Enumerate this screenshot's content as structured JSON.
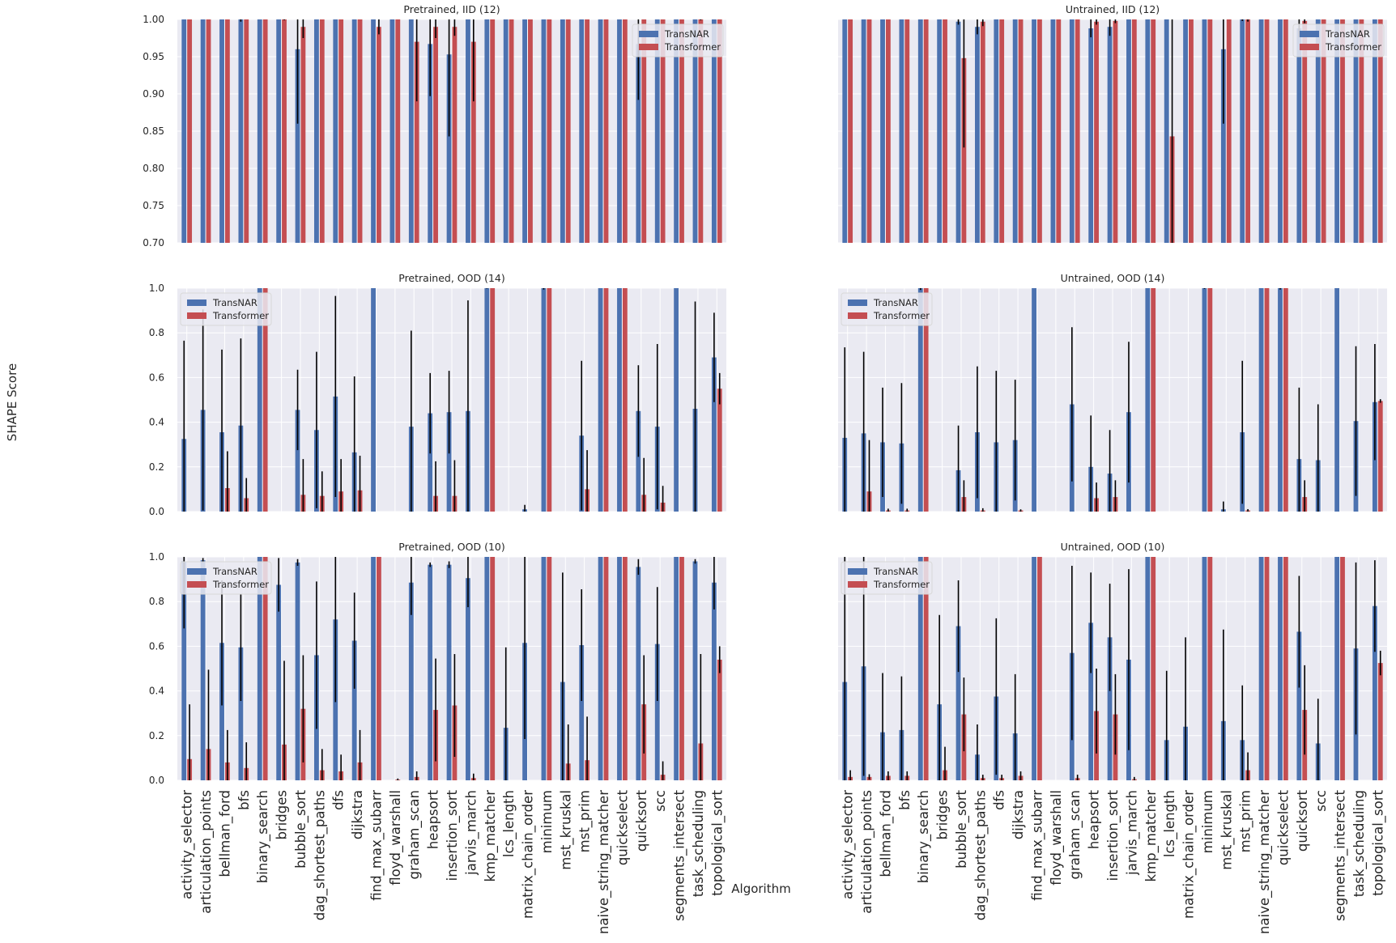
{
  "figure": {
    "ylabel": "SHAPE Score",
    "xlabel": "Algorithm",
    "legend_labels": [
      "TransNAR",
      "Transformer"
    ],
    "colors": {
      "transnar": "#4c72b0",
      "transformer": "#c44e52",
      "panel_bg": "#eaeaf2",
      "grid": "#ffffff",
      "errorbar": "#000000"
    }
  },
  "categories": [
    "activity_selector",
    "articulation_points",
    "bellman_ford",
    "bfs",
    "binary_search",
    "bridges",
    "bubble_sort",
    "dag_shortest_paths",
    "dfs",
    "dijkstra",
    "find_max_subarr",
    "floyd_warshall",
    "graham_scan",
    "heapsort",
    "insertion_sort",
    "jarvis_march",
    "kmp_matcher",
    "lcs_length",
    "matrix_chain_order",
    "minimum",
    "mst_kruskal",
    "mst_prim",
    "naive_string_matcher",
    "quickselect",
    "quicksort",
    "scc",
    "segments_intersect",
    "task_scheduling",
    "topological_sort"
  ],
  "chart_data": [
    {
      "type": "bar",
      "title": "Pretrained, IID (12)",
      "ylim": [
        0.7,
        1.0
      ],
      "yticks": [
        "0.70",
        "0.75",
        "0.80",
        "0.85",
        "0.90",
        "0.95",
        "1.00"
      ],
      "legend": "top-right",
      "series": [
        {
          "name": "TransNAR",
          "values": [
            1,
            1,
            1,
            1,
            1,
            1,
            0.96,
            1,
            1,
            1,
            1,
            1,
            1,
            0.967,
            0.953,
            1,
            1,
            1,
            1,
            1,
            1,
            1,
            1,
            1,
            0.967,
            1,
            1,
            1,
            1
          ],
          "err": [
            0,
            0,
            0,
            0.003,
            0,
            0,
            0.1,
            0,
            0,
            0,
            0,
            0,
            0,
            0.07,
            0.11,
            0,
            0,
            0,
            0,
            0,
            0,
            0,
            0,
            0,
            0.075,
            0,
            0,
            0,
            0
          ]
        },
        {
          "name": "Transformer",
          "values": [
            1,
            1,
            1,
            1,
            1,
            1,
            0.99,
            1,
            1,
            1,
            0.99,
            1,
            0.97,
            0.99,
            0.99,
            0.97,
            1,
            1,
            1,
            1,
            1,
            1,
            1,
            1,
            1,
            1,
            1,
            1,
            1
          ],
          "err": [
            0,
            0,
            0,
            0,
            0,
            0.001,
            0.015,
            0,
            0,
            0,
            0.01,
            0,
            0.08,
            0.015,
            0.012,
            0.08,
            0,
            0,
            0,
            0,
            0,
            0,
            0,
            0,
            0,
            0,
            0,
            0.001,
            0
          ]
        }
      ]
    },
    {
      "type": "bar",
      "title": "Untrained, IID (12)",
      "ylim": [
        0.7,
        1.0
      ],
      "yticks": [
        "0.70",
        "0.75",
        "0.80",
        "0.85",
        "0.90",
        "0.95",
        "1.00"
      ],
      "legend": "top-right",
      "series": [
        {
          "name": "TransNAR",
          "values": [
            1,
            1,
            1,
            1,
            1,
            1,
            0.997,
            0.99,
            1,
            1,
            1,
            1,
            1,
            0.988,
            0.99,
            1,
            1,
            1,
            1,
            1,
            0.96,
            1,
            1,
            1,
            0.988,
            1,
            1,
            1,
            1
          ],
          "err": [
            0,
            0,
            0,
            0,
            0,
            0,
            0.004,
            0.01,
            0,
            0,
            0,
            0,
            0,
            0.012,
            0.012,
            0,
            0,
            0,
            0,
            0,
            0.1,
            0.002,
            0,
            0,
            0.012,
            0,
            0,
            0,
            0
          ]
        },
        {
          "name": "Transformer",
          "values": [
            1,
            1,
            1,
            1,
            1,
            1,
            0.948,
            0.997,
            1,
            1,
            1,
            1,
            1,
            0.997,
            0.998,
            1,
            1,
            0.843,
            1,
            1,
            1,
            1,
            1,
            1,
            0.998,
            1,
            1,
            1,
            1
          ],
          "err": [
            0,
            0,
            0,
            0,
            0,
            0,
            0.12,
            0.006,
            0,
            0,
            0,
            0,
            0,
            0.004,
            0.003,
            0,
            0,
            0.157,
            0,
            0,
            0,
            0.003,
            0,
            0,
            0.003,
            0,
            0,
            0,
            0
          ]
        }
      ]
    },
    {
      "type": "bar",
      "title": "Pretrained, OOD (14)",
      "ylim": [
        0.0,
        1.0
      ],
      "yticks": [
        "0.0",
        "0.2",
        "0.4",
        "0.6",
        "0.8",
        "1.0"
      ],
      "legend": "top-left",
      "series": [
        {
          "name": "TransNAR",
          "values": [
            0.325,
            0.455,
            0.355,
            0.385,
            1,
            0,
            0.455,
            0.365,
            0.515,
            0.265,
            1,
            0,
            0.38,
            0.44,
            0.445,
            0.45,
            1,
            0,
            0.01,
            1,
            0,
            0.34,
            1,
            1,
            0.45,
            0.38,
            1,
            0.46,
            0.69
          ],
          "err": [
            0.44,
            0.45,
            0.37,
            0.39,
            0,
            0,
            0.18,
            0.35,
            0.45,
            0.34,
            0,
            0,
            0.43,
            0.18,
            0.185,
            0.495,
            0.002,
            0,
            0.02,
            0.006,
            0,
            0.335,
            0,
            0,
            0.205,
            0.37,
            0,
            0.48,
            0.2
          ]
        },
        {
          "name": "Transformer",
          "values": [
            0,
            0,
            0.105,
            0.06,
            1,
            0,
            0.075,
            0.07,
            0.09,
            0.095,
            0,
            0,
            0,
            0.07,
            0.07,
            0,
            1,
            0,
            0,
            1,
            0,
            0.1,
            1,
            1,
            0.075,
            0.04,
            0,
            0,
            0.55
          ],
          "err": [
            0,
            0,
            0.165,
            0.09,
            0,
            0,
            0.16,
            0.11,
            0.145,
            0.155,
            0,
            0,
            0,
            0.155,
            0.16,
            0,
            0,
            0,
            0,
            0,
            0,
            0.175,
            0,
            0,
            0.165,
            0.075,
            0,
            0,
            0.07
          ]
        }
      ]
    },
    {
      "type": "bar",
      "title": "Untrained, OOD (14)",
      "ylim": [
        0.0,
        1.0
      ],
      "yticks": [
        "0.0",
        "0.2",
        "0.4",
        "0.6",
        "0.8",
        "1.0"
      ],
      "legend": "top-left",
      "series": [
        {
          "name": "TransNAR",
          "values": [
            0.33,
            0.35,
            0.31,
            0.305,
            1,
            0,
            0.185,
            0.355,
            0.31,
            0.32,
            1,
            0,
            0.48,
            0.2,
            0.17,
            0.445,
            1,
            0,
            0,
            1,
            0.01,
            0.355,
            1,
            1,
            0.235,
            0.23,
            1,
            0.405,
            0.49
          ],
          "err": [
            0.405,
            0.365,
            0.245,
            0.27,
            0.008,
            0,
            0.2,
            0.295,
            0.32,
            0.27,
            0,
            0,
            0.345,
            0.23,
            0.195,
            0.315,
            0,
            0,
            0,
            0.003,
            0.035,
            0.32,
            0,
            0.006,
            0.32,
            0.25,
            0,
            0.335,
            0.26
          ]
        },
        {
          "name": "Transformer",
          "values": [
            0,
            0.09,
            0.005,
            0.005,
            1,
            0,
            0.065,
            0.005,
            0,
            0.005,
            0,
            0,
            0,
            0.06,
            0.065,
            0,
            1,
            0,
            0,
            1,
            0,
            0.005,
            1,
            1,
            0.065,
            0,
            0,
            0,
            0.495
          ],
          "err": [
            0,
            0.23,
            0.008,
            0.008,
            0,
            0,
            0.075,
            0.01,
            0,
            0.005,
            0,
            0,
            0,
            0.07,
            0.075,
            0,
            0,
            0,
            0,
            0,
            0,
            0.006,
            0,
            0,
            0.075,
            0,
            0,
            0,
            0.008
          ]
        }
      ]
    },
    {
      "type": "bar",
      "title": "Pretrained, OOD (10)",
      "ylim": [
        0.0,
        1.0
      ],
      "yticks": [
        "0.0",
        "0.2",
        "0.4",
        "0.6",
        "0.8",
        "1.0"
      ],
      "legend": "top-left",
      "series": [
        {
          "name": "TransNAR",
          "values": [
            0.98,
            0.985,
            0.615,
            0.595,
            1,
            0.875,
            0.975,
            0.56,
            0.72,
            0.625,
            1,
            0,
            0.885,
            0.965,
            0.965,
            0.905,
            1,
            0.235,
            0.615,
            1,
            0.44,
            0.605,
            1,
            1,
            0.955,
            0.61,
            1,
            0.98,
            0.885
          ],
          "err": [
            0.3,
            0.01,
            0.28,
            0.24,
            0,
            0.12,
            0.015,
            0.33,
            0.37,
            0.215,
            0,
            0,
            0.145,
            0.01,
            0.015,
            0.13,
            0,
            0.36,
            0.43,
            0,
            0.49,
            0.25,
            0,
            0,
            0.035,
            0.255,
            0,
            0.01,
            0.12
          ]
        },
        {
          "name": "Transformer",
          "values": [
            0.095,
            0.14,
            0.08,
            0.055,
            1,
            0.16,
            0.32,
            0.045,
            0.04,
            0.08,
            1,
            0.003,
            0.015,
            0.315,
            0.335,
            0.01,
            1,
            0,
            0,
            1,
            0.075,
            0.09,
            1,
            1,
            0.34,
            0.025,
            1,
            0.165,
            0.54
          ],
          "err": [
            0.245,
            0.355,
            0.145,
            0.115,
            0,
            0.375,
            0.24,
            0.095,
            0.075,
            0.145,
            0,
            0.005,
            0.025,
            0.23,
            0.23,
            0.02,
            0,
            0,
            0,
            0,
            0.175,
            0.195,
            0,
            0,
            0.22,
            0.06,
            0,
            0.4,
            0.06
          ]
        }
      ]
    },
    {
      "type": "bar",
      "title": "Untrained, OOD (10)",
      "ylim": [
        0.0,
        1.0
      ],
      "yticks": [
        "0.0",
        "0.2",
        "0.4",
        "0.6",
        "0.8",
        "1.0"
      ],
      "legend": "top-left",
      "series": [
        {
          "name": "TransNAR",
          "values": [
            0.44,
            0.51,
            0.215,
            0.225,
            1,
            0.34,
            0.69,
            0.115,
            0.375,
            0.21,
            1,
            0,
            0.57,
            0.705,
            0.64,
            0.54,
            1,
            0.18,
            0.24,
            1,
            0.265,
            0.18,
            1,
            1,
            0.665,
            0.165,
            1,
            0.59,
            0.78
          ],
          "err": [
            0.56,
            0.49,
            0.265,
            0.24,
            0,
            0.4,
            0.205,
            0.135,
            0.35,
            0.265,
            0,
            0,
            0.39,
            0.225,
            0.24,
            0.405,
            0,
            0.31,
            0.4,
            0,
            0.41,
            0.245,
            0,
            0,
            0.25,
            0.2,
            0,
            0.385,
            0.205
          ]
        },
        {
          "name": "Transformer",
          "values": [
            0.015,
            0.015,
            0.02,
            0.02,
            1,
            0.045,
            0.295,
            0.01,
            0.01,
            0.02,
            1,
            0,
            0.01,
            0.31,
            0.295,
            0.005,
            1,
            0,
            0,
            1,
            0,
            0.045,
            1,
            1,
            0.315,
            0,
            1,
            0,
            0.525
          ],
          "err": [
            0.03,
            0.012,
            0.02,
            0.02,
            0,
            0.105,
            0.165,
            0.015,
            0.015,
            0.02,
            0,
            0,
            0.015,
            0.19,
            0.18,
            0.01,
            0,
            0,
            0,
            0,
            0,
            0.08,
            0,
            0,
            0.2,
            0,
            0,
            0,
            0.055
          ]
        }
      ]
    }
  ]
}
